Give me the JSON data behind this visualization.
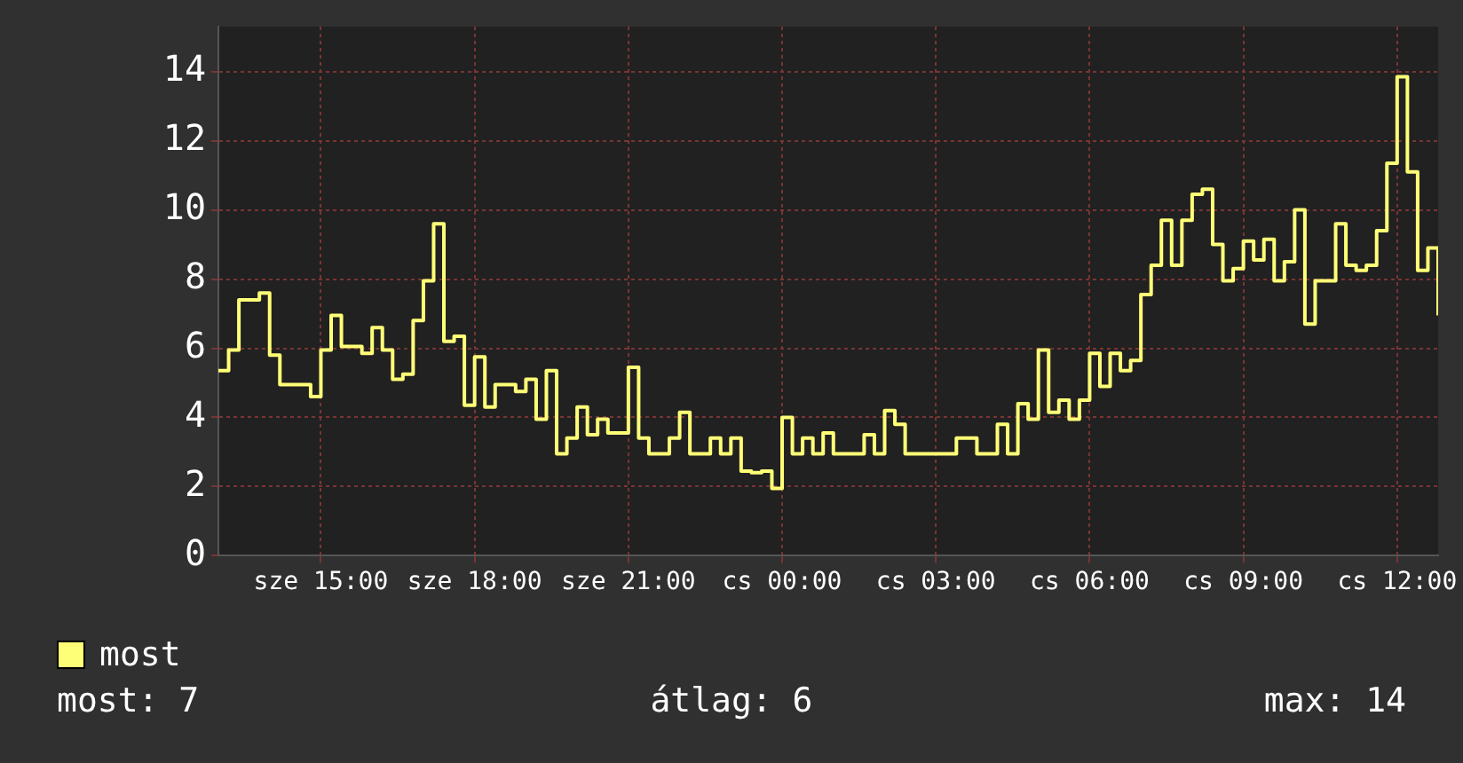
{
  "chart_data": {
    "type": "step",
    "categories": [
      null,
      null,
      null,
      null,
      null,
      null,
      null,
      null,
      null,
      null,
      "sze 15:00",
      null,
      null,
      null,
      null,
      null,
      null,
      null,
      null,
      null,
      null,
      null,
      null,
      null,
      null,
      "sze 18:00",
      null,
      null,
      null,
      null,
      null,
      null,
      null,
      null,
      null,
      null,
      null,
      null,
      null,
      null,
      "sze 21:00",
      null,
      null,
      null,
      null,
      null,
      null,
      null,
      null,
      null,
      null,
      null,
      null,
      null,
      null,
      "cs 00:00",
      null,
      null,
      null,
      null,
      null,
      null,
      null,
      null,
      null,
      null,
      null,
      null,
      null,
      null,
      "cs 03:00",
      null,
      null,
      null,
      null,
      null,
      null,
      null,
      null,
      null,
      null,
      null,
      null,
      null,
      null,
      "cs 06:00",
      null,
      null,
      null,
      null,
      null,
      null,
      null,
      null,
      null,
      null,
      null,
      null,
      null,
      null,
      "cs 09:00",
      null,
      null,
      null,
      null,
      null,
      null,
      null,
      null,
      null,
      null,
      null,
      null,
      null,
      null,
      "cs 12:00",
      null,
      null,
      null,
      null
    ],
    "series": [
      {
        "name": "most",
        "color": "#ffff77",
        "values": [
          5.35,
          5.95,
          7.4,
          7.4,
          7.6,
          5.8,
          4.95,
          4.95,
          4.95,
          4.6,
          5.95,
          6.95,
          6.05,
          6.05,
          5.85,
          6.6,
          5.95,
          5.1,
          5.25,
          6.8,
          7.95,
          9.6,
          6.2,
          6.35,
          4.35,
          5.75,
          4.3,
          4.95,
          4.95,
          4.75,
          5.1,
          3.95,
          5.35,
          2.95,
          3.4,
          4.3,
          3.5,
          3.95,
          3.55,
          3.55,
          5.45,
          3.4,
          2.95,
          2.95,
          3.4,
          4.15,
          2.95,
          2.95,
          3.4,
          2.95,
          3.4,
          2.45,
          2.4,
          2.45,
          1.95,
          4.0,
          2.95,
          3.4,
          2.95,
          3.55,
          2.95,
          2.95,
          2.95,
          3.5,
          2.95,
          4.2,
          3.8,
          2.95,
          2.95,
          2.95,
          2.95,
          2.95,
          3.4,
          3.4,
          2.95,
          2.95,
          3.8,
          2.95,
          4.4,
          3.95,
          5.95,
          4.15,
          4.5,
          3.95,
          4.5,
          5.85,
          4.9,
          5.85,
          5.35,
          5.65,
          7.55,
          8.4,
          9.7,
          8.4,
          9.7,
          10.45,
          10.6,
          9.0,
          7.95,
          8.3,
          9.1,
          8.55,
          9.15,
          7.95,
          8.5,
          10.0,
          6.7,
          7.95,
          7.95,
          9.6,
          8.4,
          8.25,
          8.4,
          9.4,
          11.35,
          13.85,
          11.1,
          8.25,
          8.9,
          6.95
        ]
      }
    ],
    "ylim": [
      0,
      15.3
    ],
    "yticks": [
      0,
      2,
      4,
      6,
      8,
      10,
      12,
      14
    ],
    "grid": true,
    "legend": "bottom left",
    "annotations": [
      "most: 7",
      "átlag: 6",
      "max: 14"
    ]
  }
}
